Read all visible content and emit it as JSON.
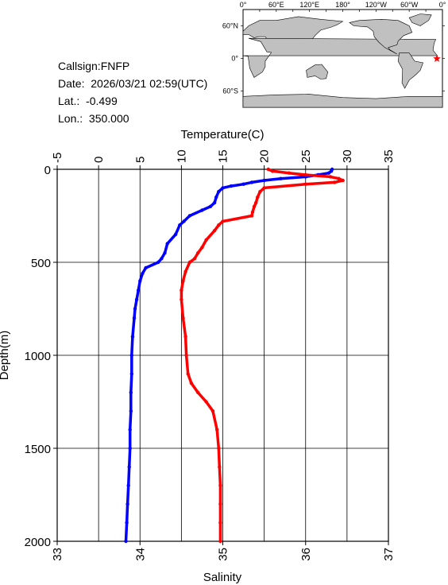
{
  "station": {
    "callsign": "Callsign:FNFP",
    "date_label": "Date:",
    "date_value": "2026/03/21 02:59(UTC)",
    "lat_label": "Lat.:",
    "lat_value": "-0.499",
    "lon_label": "Lon.:",
    "lon_value": "350.000"
  },
  "map": {
    "top_labels": [
      "0°",
      "60°E",
      "120°E",
      "180°",
      "120°W",
      "60°W",
      "0°"
    ],
    "lat_labels": [
      "60°N",
      "0°",
      "60°S"
    ],
    "land_color": "#c0c0c0",
    "ocean_color": "#ffffff",
    "marker_color": "#ff0000",
    "marker_lon": 350.0,
    "marker_lat": -0.499
  },
  "chart_data": {
    "type": "line",
    "xlabel_top": "Temperature(C)",
    "xlabel_bottom": "Salinity",
    "ylabel": "Depth(m)",
    "temp_lim": [
      -5,
      35
    ],
    "temp_ticks": [
      "-5",
      "0",
      "5",
      "10",
      "15",
      "20",
      "25",
      "30",
      "35"
    ],
    "sal_lim": [
      33,
      37
    ],
    "sal_ticks": [
      "33",
      "34",
      "35",
      "36",
      "37"
    ],
    "depth_lim": [
      0,
      2000
    ],
    "depth_ticks": [
      "0",
      "500",
      "1000",
      "1500",
      "2000"
    ],
    "grid": true,
    "series": [
      {
        "axis": "temperature",
        "color": "#0000ff",
        "depth": [
          0,
          10,
          20,
          30,
          40,
          50,
          60,
          70,
          80,
          90,
          100,
          120,
          150,
          180,
          200,
          220,
          250,
          280,
          300,
          350,
          400,
          450,
          480,
          500,
          530,
          560,
          600,
          650,
          700,
          750,
          800,
          900,
          1000,
          1100,
          1200,
          1300,
          1400,
          1500,
          1600,
          1700,
          1800,
          1900,
          2000
        ],
        "values": [
          28.2,
          28.1,
          27.8,
          26.5,
          25.0,
          22.0,
          20.0,
          18.5,
          17.5,
          16.0,
          15.0,
          14.5,
          14.2,
          14.0,
          13.5,
          12.5,
          11.0,
          10.3,
          9.8,
          9.3,
          8.3,
          8.0,
          7.6,
          7.2,
          5.7,
          5.3,
          5.0,
          4.8,
          4.6,
          4.4,
          4.3,
          4.1,
          4.0,
          4.0,
          3.9,
          3.9,
          3.8,
          3.8,
          3.7,
          3.6,
          3.5,
          3.4,
          3.3
        ]
      },
      {
        "axis": "salinity",
        "color": "#ff0000",
        "depth": [
          0,
          10,
          20,
          30,
          40,
          50,
          60,
          70,
          80,
          100,
          120,
          150,
          180,
          200,
          230,
          250,
          280,
          300,
          330,
          380,
          420,
          450,
          480,
          500,
          550,
          600,
          650,
          700,
          800,
          900,
          1000,
          1100,
          1150,
          1200,
          1250,
          1300,
          1400,
          1500,
          1600,
          1700,
          1800,
          1900,
          2000
        ],
        "values": [
          35.55,
          35.6,
          35.8,
          36.0,
          36.3,
          36.4,
          36.45,
          36.35,
          36.0,
          35.5,
          35.45,
          35.42,
          35.4,
          35.38,
          35.36,
          35.35,
          35.0,
          34.95,
          34.9,
          34.8,
          34.75,
          34.7,
          34.66,
          34.6,
          34.55,
          34.52,
          34.5,
          34.5,
          34.52,
          34.55,
          34.56,
          34.58,
          34.62,
          34.7,
          34.8,
          34.88,
          34.93,
          34.95,
          34.96,
          34.97,
          34.97,
          34.97,
          34.97
        ]
      }
    ]
  }
}
